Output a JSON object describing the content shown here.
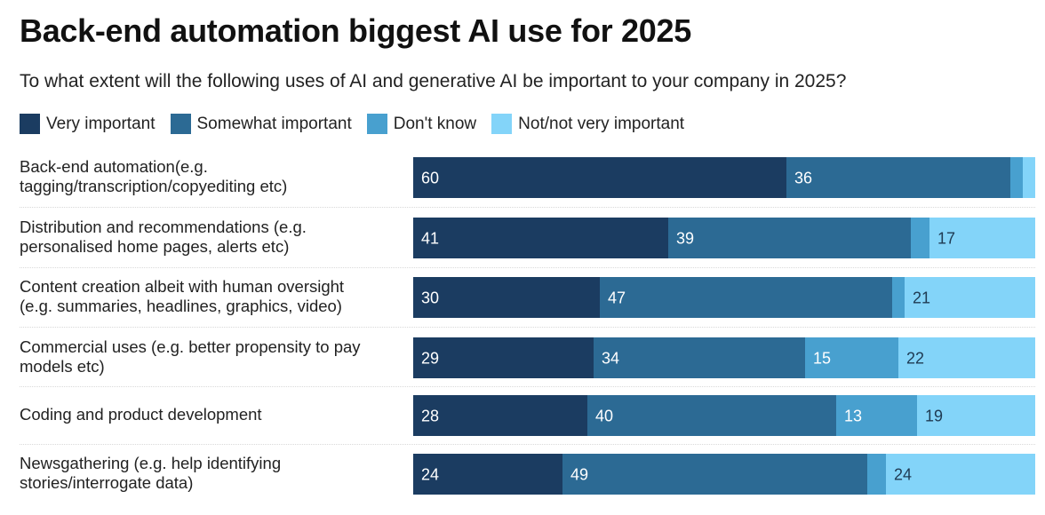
{
  "chart_data": {
    "type": "bar",
    "orientation": "horizontal",
    "stacked": true,
    "title": "Back-end automation biggest AI use for 2025",
    "subtitle": "To what extent will the following uses of AI and generative AI be important to your company in 2025?",
    "xlabel": "",
    "ylabel": "",
    "xlim": [
      0,
      100
    ],
    "grid": false,
    "legend_position": "top-left",
    "categories": [
      "Back-end automation(e.g. tagging/transcription/copyediting etc)",
      "Distribution and recommendations (e.g. personalised home pages, alerts etc)",
      "Content creation albeit with human oversight (e.g. summaries, headlines, graphics, video)",
      "Commercial uses (e.g. better propensity to pay models etc)",
      "Coding and product development",
      "Newsgathering (e.g. help identifying stories/interrogate data)"
    ],
    "category_lines": [
      [
        "Back-end automation(e.g.",
        "tagging/transcription/copyediting etc)"
      ],
      [
        "Distribution and recommendations (e.g.",
        "personalised home pages, alerts etc)"
      ],
      [
        "Content creation albeit with human oversight",
        "(e.g. summaries, headlines, graphics, video)"
      ],
      [
        "Commercial uses (e.g. better propensity to pay",
        "models etc)"
      ],
      [
        "Coding and product development"
      ],
      [
        "Newsgathering (e.g. help identifying",
        "stories/interrogate data)"
      ]
    ],
    "series": [
      {
        "name": "Very important",
        "color": "#1b3c61",
        "label_color": "#ffffff",
        "values": [
          60,
          41,
          30,
          29,
          28,
          24
        ],
        "labels_shown": [
          true,
          true,
          true,
          true,
          true,
          true
        ]
      },
      {
        "name": "Somewhat important",
        "color": "#2c6a94",
        "label_color": "#ffffff",
        "values": [
          36,
          39,
          47,
          34,
          40,
          49
        ],
        "labels_shown": [
          true,
          true,
          true,
          true,
          true,
          true
        ]
      },
      {
        "name": "Don't know",
        "color": "#48a0cf",
        "label_color": "#ffffff",
        "values": [
          2,
          3,
          2,
          15,
          13,
          3
        ],
        "labels_shown": [
          false,
          false,
          false,
          true,
          true,
          false
        ]
      },
      {
        "name": "Not/not very important",
        "color": "#83d4f9",
        "label_color": "#1f3a52",
        "values": [
          2,
          17,
          21,
          22,
          19,
          24
        ],
        "labels_shown": [
          false,
          true,
          true,
          true,
          true,
          true
        ]
      }
    ]
  }
}
